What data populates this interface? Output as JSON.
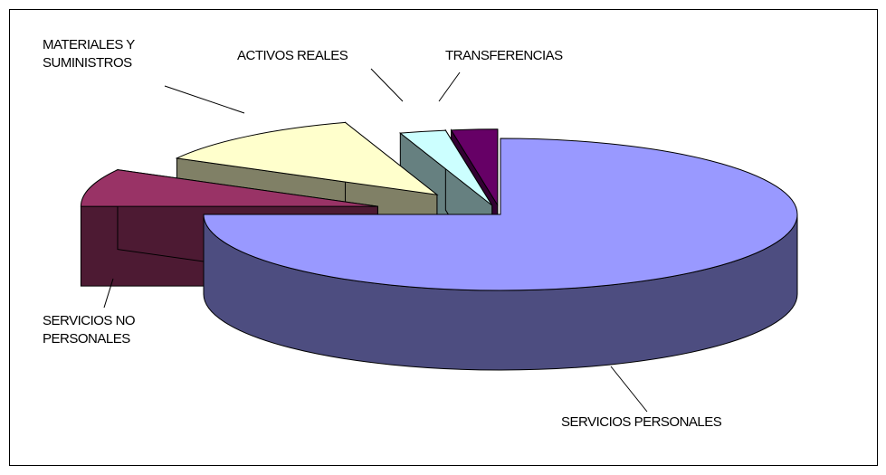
{
  "chart_data": {
    "type": "pie",
    "categories": [
      "SERVICIOS PERSONALES",
      "SERVICIOS NO PERSONALES",
      "MATERIALES Y SUMINISTROS",
      "ACTIVOS REALES",
      "TRANSFERENCIAS"
    ],
    "values": [
      75,
      8,
      12,
      2.5,
      2.5
    ],
    "colors": [
      "#9999ff",
      "#993366",
      "#ffffcc",
      "#ccffff",
      "#660066"
    ],
    "side_colors": [
      "#4d4d80",
      "#4d1a33",
      "#808066",
      "#668080",
      "#330033"
    ]
  }
}
